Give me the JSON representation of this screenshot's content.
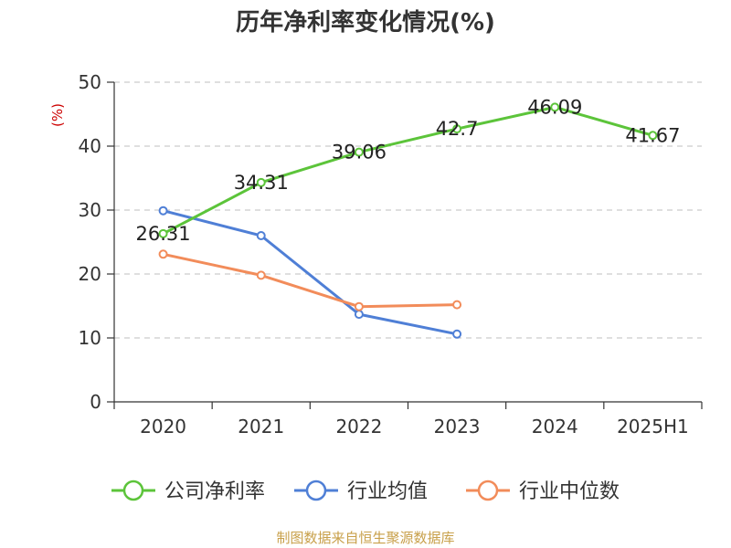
{
  "chart_data": {
    "type": "line",
    "title": "历年净利率变化情况(%)",
    "ylabel": "(%)",
    "xlabel": "",
    "categories": [
      "2020",
      "2021",
      "2022",
      "2023",
      "2024",
      "2025H1"
    ],
    "ylim": [
      0,
      50
    ],
    "yticks": [
      0,
      10,
      20,
      30,
      40,
      50
    ],
    "grid": true,
    "legend_position": "bottom",
    "series": [
      {
        "name": "公司净利率",
        "color": "#5cc43a",
        "values": [
          26.31,
          34.31,
          39.06,
          42.7,
          46.09,
          41.67
        ],
        "labels": [
          "26.31",
          "34.31",
          "39.06",
          "42.7",
          "46.09",
          "41.67"
        ],
        "show_labels": true
      },
      {
        "name": "行业均值",
        "color": "#4f7fd6",
        "values": [
          29.9,
          26.0,
          13.7,
          10.6,
          null,
          null
        ],
        "show_labels": false
      },
      {
        "name": "行业中位数",
        "color": "#f28c5a",
        "values": [
          23.1,
          19.8,
          14.9,
          15.2,
          null,
          null
        ],
        "show_labels": false
      }
    ]
  },
  "source": "制图数据来自恒生聚源数据库"
}
